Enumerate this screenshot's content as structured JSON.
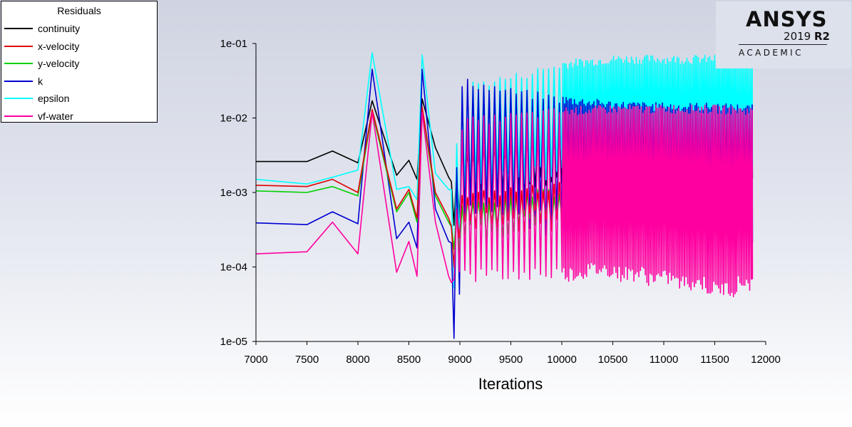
{
  "legend": {
    "title": "Residuals",
    "items": [
      {
        "label": "continuity",
        "color": "#000000"
      },
      {
        "label": "x-velocity",
        "color": "#e00000"
      },
      {
        "label": "y-velocity",
        "color": "#00d000"
      },
      {
        "label": "k",
        "color": "#0000d0"
      },
      {
        "label": "epsilon",
        "color": "#00ffff"
      },
      {
        "label": "vf-water",
        "color": "#ff00a0"
      }
    ]
  },
  "logo": {
    "brand": "ANSYS",
    "version": "2019",
    "release": "R2",
    "edition": "ACADEMIC"
  },
  "chart_data": {
    "type": "line",
    "title": "",
    "xlabel": "Iterations",
    "ylabel": "",
    "yscale": "log",
    "xlim": [
      7000,
      12000
    ],
    "ylim": [
      1e-05,
      0.1
    ],
    "grid": false,
    "legend_position": "top-left",
    "xticks": [
      "7000",
      "7500",
      "8000",
      "8500",
      "9000",
      "9500",
      "10000",
      "10500",
      "11000",
      "11500",
      "12000"
    ],
    "yticks": [
      "1e-01",
      "1e-02",
      "1e-03",
      "1e-04",
      "1e-05"
    ],
    "series": [
      {
        "name": "continuity",
        "color": "#000000",
        "x": [
          7000,
          7500,
          7750,
          8000,
          8140,
          8380,
          8500,
          8580,
          8630,
          8760,
          8890,
          9000,
          9100,
          9200,
          9300,
          9400,
          9500,
          9600,
          9700,
          9800,
          9900,
          10000,
          10500,
          11000,
          11500,
          11870
        ],
        "y": [
          0.0026,
          0.0026,
          0.0036,
          0.0025,
          0.017,
          0.0017,
          0.0027,
          0.0015,
          0.018,
          0.004,
          0.0016,
          0.005,
          0.004,
          0.005,
          0.005,
          0.005,
          0.006,
          0.006,
          0.006,
          0.007,
          0.007,
          0.007,
          0.008,
          0.008,
          0.008,
          0.007
        ]
      },
      {
        "name": "x-velocity",
        "color": "#e00000",
        "x": [
          7000,
          7500,
          7750,
          8000,
          8140,
          8380,
          8500,
          8580,
          8630,
          8760,
          8890,
          9000,
          9500,
          10000
        ],
        "y": [
          0.00125,
          0.0012,
          0.0015,
          0.001,
          0.013,
          0.0006,
          0.0011,
          0.00045,
          0.014,
          0.001,
          0.00045,
          0.001,
          0.0012,
          0.0014
        ]
      },
      {
        "name": "y-velocity",
        "color": "#00d000",
        "x": [
          7000,
          7500,
          7750,
          8000,
          8140,
          8380,
          8500,
          8580,
          8630,
          8760,
          8890,
          9000,
          9500,
          10000
        ],
        "y": [
          0.00105,
          0.001,
          0.0012,
          0.0009,
          0.012,
          0.00055,
          0.001,
          0.0004,
          0.013,
          0.0009,
          0.0004,
          0.0009,
          0.001,
          0.0012
        ]
      },
      {
        "name": "k",
        "color": "#0000d0",
        "x": [
          7000,
          7500,
          7750,
          8000,
          8140,
          8380,
          8500,
          8580,
          8630,
          8760,
          8890,
          9000,
          9500,
          10000,
          10500,
          11000,
          11500,
          11870
        ],
        "y": [
          0.00039,
          0.00037,
          0.00055,
          0.00038,
          0.045,
          0.00024,
          0.0004,
          0.00018,
          0.045,
          0.0006,
          0.00022,
          0.035,
          0.025,
          0.02,
          0.017,
          0.016,
          0.016,
          0.015
        ]
      },
      {
        "name": "epsilon",
        "color": "#00ffff",
        "x": [
          7000,
          7500,
          7750,
          8000,
          8140,
          8380,
          8500,
          8580,
          8630,
          8760,
          8890,
          9000,
          9500,
          10000,
          10500,
          11000,
          11500,
          11870
        ],
        "y": [
          0.0015,
          0.0013,
          0.0016,
          0.002,
          0.075,
          0.0011,
          0.0012,
          0.0008,
          0.07,
          0.0018,
          0.0011,
          0.03,
          0.04,
          0.06,
          0.07,
          0.07,
          0.07,
          0.065
        ]
      },
      {
        "name": "vf-water",
        "color": "#ff00a0",
        "x": [
          7000,
          7500,
          7750,
          8000,
          8140,
          8380,
          8500,
          8580,
          8630,
          8760,
          8890,
          9000,
          9500,
          10000,
          10500,
          11000,
          11500,
          11870
        ],
        "y": [
          0.00015,
          0.00016,
          0.0004,
          0.00015,
          0.012,
          8.5e-05,
          0.00022,
          7.5e-05,
          0.012,
          0.0004,
          7.5e-05,
          0.01,
          0.012,
          0.014,
          0.015,
          0.015,
          0.015,
          0.014
        ],
        "oscillation_low": [
          7.5e-05,
          7.5e-05,
          8e-05,
          8e-05,
          9e-05,
          8e-05,
          7e-05,
          6e-05,
          5e-05,
          6e-05
        ]
      }
    ]
  }
}
